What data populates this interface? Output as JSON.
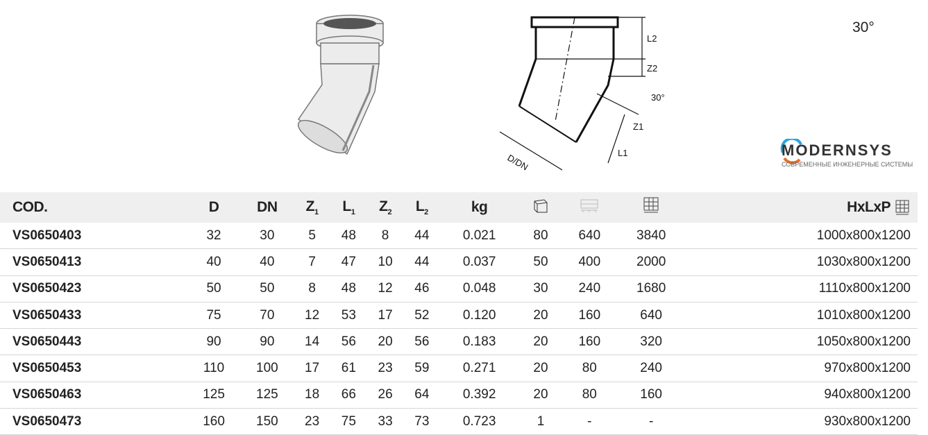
{
  "angle_label": "30°",
  "drawing": {
    "angle": "30°",
    "labels": {
      "l2": "L2",
      "z2": "Z2",
      "z1": "Z1",
      "l1": "L1",
      "d_dn": "D/DN"
    }
  },
  "table": {
    "headers": {
      "code": "COD.",
      "d": "D",
      "dn": "DN",
      "z1": "Z",
      "z1_sub": "1",
      "l1": "L",
      "l1_sub": "1",
      "z2": "Z",
      "z2_sub": "2",
      "l2": "L",
      "l2_sub": "2",
      "kg": "kg",
      "box_icon": "box-icon",
      "layer_icon": "pallet-layer-icon",
      "pallet_icon": "pallet-stack-icon",
      "size": "HxLxP"
    },
    "rows": [
      [
        "VS0650403",
        "32",
        "30",
        "5",
        "48",
        "8",
        "44",
        "0.021",
        "80",
        "640",
        "3840",
        "1000x800x1200"
      ],
      [
        "VS0650413",
        "40",
        "40",
        "7",
        "47",
        "10",
        "44",
        "0.037",
        "50",
        "400",
        "2000",
        "1030x800x1200"
      ],
      [
        "VS0650423",
        "50",
        "50",
        "8",
        "48",
        "12",
        "46",
        "0.048",
        "30",
        "240",
        "1680",
        "1110x800x1200"
      ],
      [
        "VS0650433",
        "75",
        "70",
        "12",
        "53",
        "17",
        "52",
        "0.120",
        "20",
        "160",
        "640",
        "1010x800x1200"
      ],
      [
        "VS0650443",
        "90",
        "90",
        "14",
        "56",
        "20",
        "56",
        "0.183",
        "20",
        "160",
        "320",
        "1050x800x1200"
      ],
      [
        "VS0650453",
        "110",
        "100",
        "17",
        "61",
        "23",
        "59",
        "0.271",
        "20",
        "80",
        "240",
        "970x800x1200"
      ],
      [
        "VS0650463",
        "125",
        "125",
        "18",
        "66",
        "26",
        "64",
        "0.392",
        "20",
        "80",
        "160",
        "940x800x1200"
      ],
      [
        "VS0650473",
        "160",
        "150",
        "23",
        "75",
        "33",
        "73",
        "0.723",
        "1",
        "-",
        "-",
        "930x800x1200"
      ]
    ]
  },
  "logo": {
    "name": "MODERNSYS",
    "tagline": "СОВРЕМЕННЫЕ ИНЖЕНЕРНЫЕ СИСТЕМЫ",
    "colors": {
      "blue": "#2aa3e0",
      "orange": "#e8702a"
    }
  }
}
